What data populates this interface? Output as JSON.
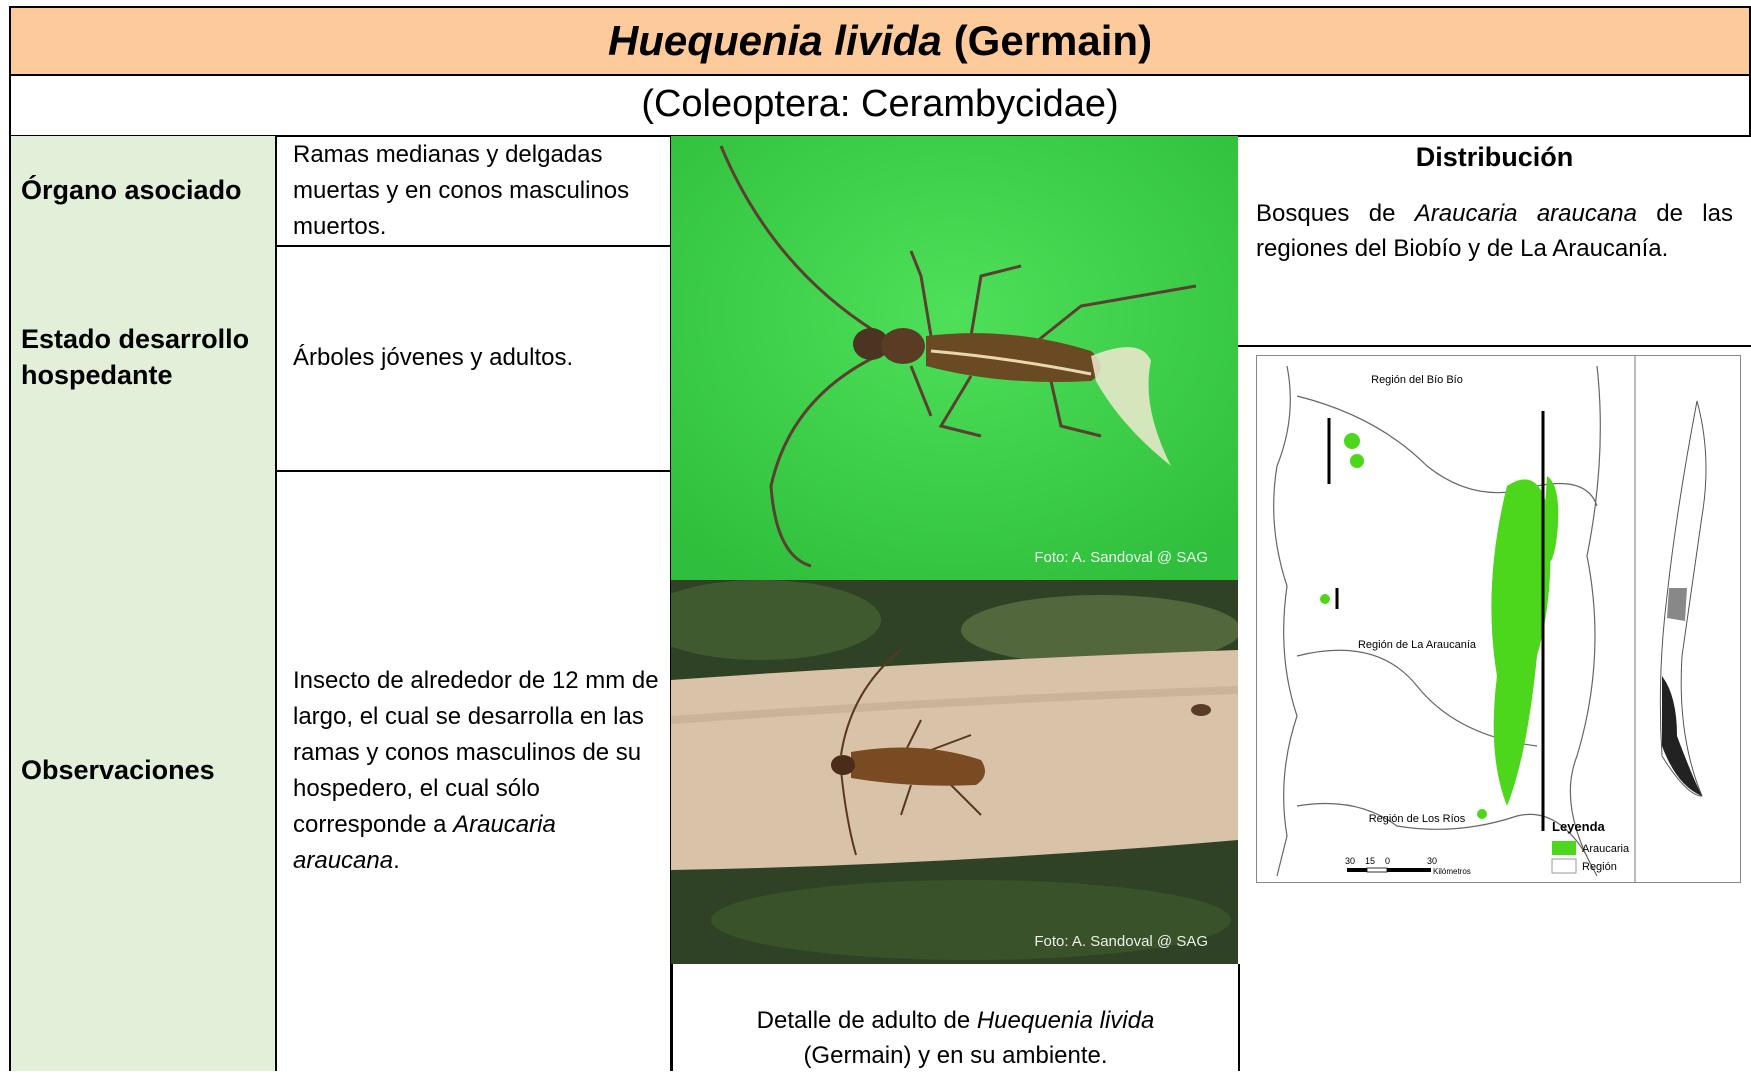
{
  "header": {
    "title_italic": "Huequenia livida",
    "title_rest": "(Germain)",
    "subtitle": "(Coleoptera: Cerambycidae)"
  },
  "table": {
    "rows": [
      {
        "label": "Órgano asociado",
        "value": "Ramas medianas y delgadas muertas y en conos masculinos muertos."
      },
      {
        "label": "Estado desarrollo hospedante",
        "value": "Árboles jóvenes y adultos."
      },
      {
        "label": "Observaciones",
        "value": "Insecto de alrededor de 12 mm de largo, el cual se desarrolla en las ramas y conos masculinos de su hospedero, el cual sólo corresponde a",
        "value_italic": "Araucaria araucana",
        "value_end": "."
      }
    ]
  },
  "photos": [
    {
      "credit": "Foto: A. Sandoval @ SAG"
    },
    {
      "credit": "Foto: A. Sandoval @ SAG"
    }
  ],
  "caption": {
    "start": "Detalle de adulto de",
    "italic": "Huequenia livida",
    "end": "(Germain) y en su ambiente."
  },
  "distribution": {
    "heading": "Distribución",
    "start": "Bosques de",
    "italic": "Araucaria araucana",
    "end": "de las regiones del Biobío y de La Araucanía."
  },
  "map": {
    "regions": [
      "Región del Bío Bío",
      "Región de La Araucanía",
      "Región de Los Ríos"
    ],
    "legend_title": "Leyenda",
    "legend": [
      "Araucaria",
      "Región"
    ],
    "scale": [
      "30",
      "15",
      "0",
      "30"
    ],
    "scale_unit": "Kilómetros"
  }
}
